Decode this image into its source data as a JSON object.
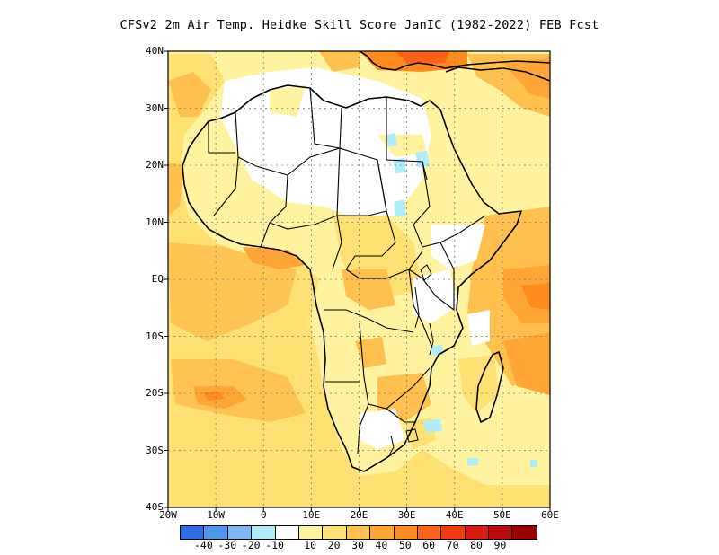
{
  "title": "CFSv2  2m Air Temp. Heidke Skill Score JanIC (1982-2022) FEB Fcst",
  "map": {
    "lat_labels": [
      "40N",
      "30N",
      "20N",
      "10N",
      "EQ",
      "10S",
      "20S",
      "30S",
      "40S"
    ],
    "lon_labels": [
      "20W",
      "10W",
      "0",
      "10E",
      "20E",
      "30E",
      "40E",
      "50E",
      "60E"
    ],
    "lat_range": [
      -40,
      40
    ],
    "lon_range": [
      -20,
      60
    ],
    "grid": "dotted"
  },
  "colorbar": {
    "colors": [
      "#2e6de3",
      "#4e95ef",
      "#7fb6f5",
      "#b0ecfa",
      "#ffffff",
      "#fff3a0",
      "#ffe072",
      "#ffc04e",
      "#ffa637",
      "#ff8a1e",
      "#ff6216",
      "#f63a10",
      "#dc1c10",
      "#bc0b0c",
      "#9a0000"
    ],
    "labels": [
      "-40",
      "-30",
      "-20",
      "-10",
      "10",
      "20",
      "30",
      "40",
      "50",
      "60",
      "70",
      "80",
      "90"
    ]
  }
}
